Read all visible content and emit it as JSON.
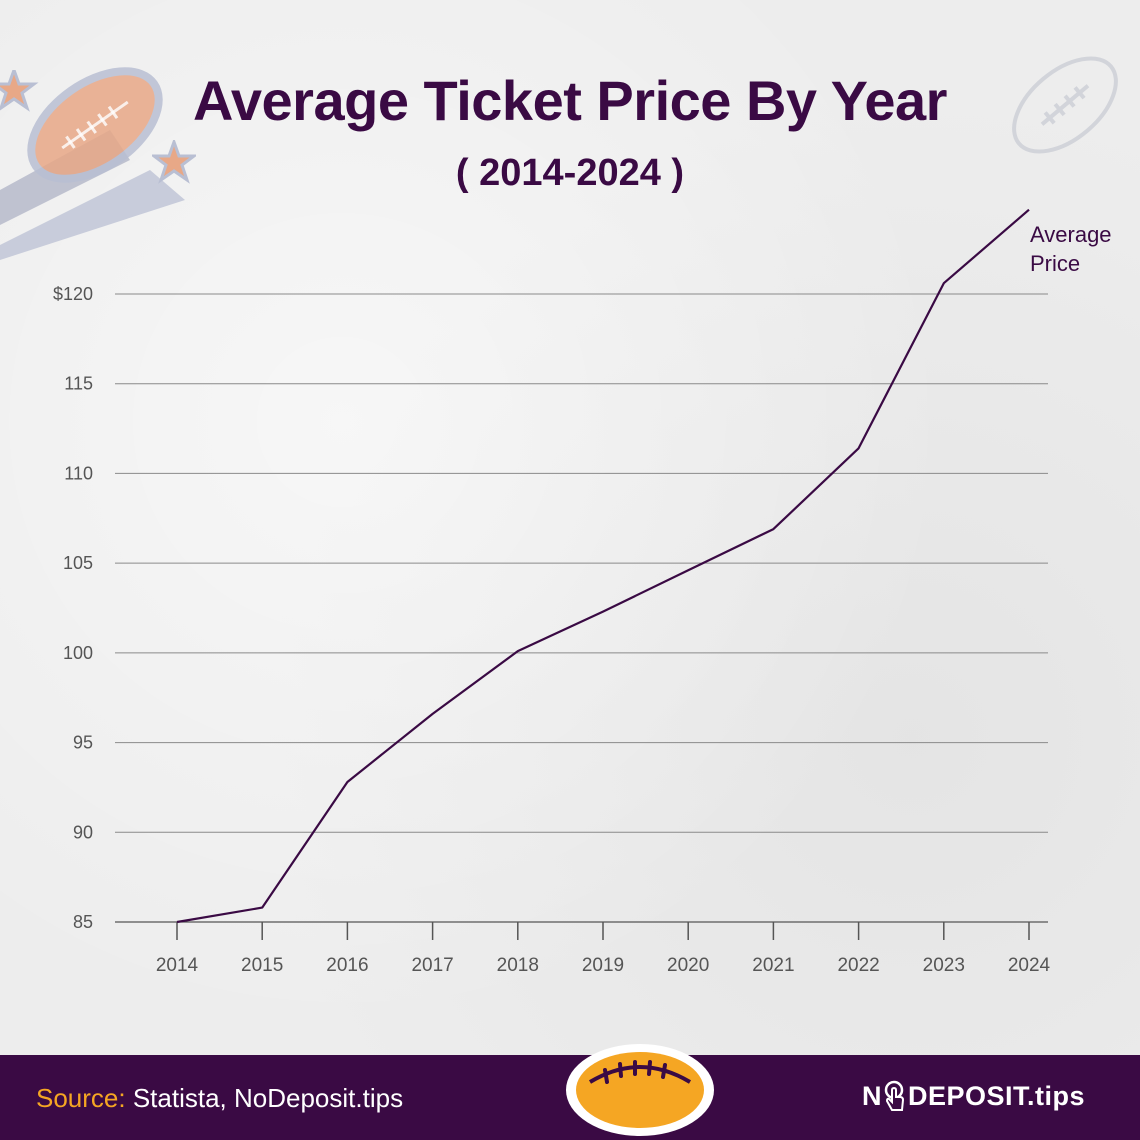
{
  "title": "Average Ticket Price By Year",
  "subtitle": "( 2014-2024 )",
  "footer": {
    "source_label": "Source:",
    "source_text": "Statista, NoDeposit.tips",
    "brand_prefix": "N",
    "brand_suffix": "DEPOSIT.tips"
  },
  "colors": {
    "line": "#3a0a44",
    "title": "#3a0a44",
    "footer_bg": "#3a0a44",
    "accent": "#f5a623",
    "grid": "#6e6e6e",
    "tick_text": "#555555"
  },
  "icons": [
    "football-icon",
    "star-icon",
    "hand-pointer-icon"
  ],
  "chart_data": {
    "type": "line",
    "title": "Average Ticket Price By Year",
    "subtitle": "( 2014-2024 )",
    "xlabel": "",
    "ylabel": "",
    "x": [
      "2014",
      "2015",
      "2016",
      "2017",
      "2018",
      "2019",
      "2020",
      "2021",
      "2022",
      "2023",
      "2024"
    ],
    "series": [
      {
        "name": "Average Price",
        "values": [
          85.0,
          85.8,
          92.8,
          96.6,
          100.1,
          102.3,
          104.6,
          106.9,
          111.4,
          120.6,
          124.7
        ]
      }
    ],
    "ylim": [
      85,
      120
    ],
    "yticks": [
      85,
      90,
      95,
      100,
      105,
      110,
      115,
      120
    ],
    "ytick_labels": [
      "85",
      "90",
      "95",
      "100",
      "105",
      "110",
      "115",
      "$120"
    ],
    "grid": true,
    "legend": "line-end label"
  }
}
